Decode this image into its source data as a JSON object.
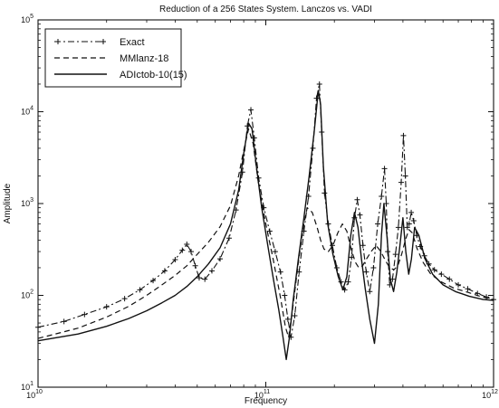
{
  "chart_data": {
    "type": "line",
    "title": "Reduction of a 256 States System. Lanczos vs. VADI",
    "xlabel": "Frequency",
    "ylabel": "Amplitude",
    "x_scale": "log",
    "y_scale": "log",
    "xlim": [
      10000000000.0,
      1000000000000.0
    ],
    "ylim": [
      10,
      100000
    ],
    "x_ticks": [
      {
        "value": 10000000000.0,
        "base": "10",
        "exp": "10"
      },
      {
        "value": 100000000000.0,
        "base": "10",
        "exp": "11"
      },
      {
        "value": 1000000000000.0,
        "base": "10",
        "exp": "12"
      }
    ],
    "y_ticks": [
      {
        "value": 10,
        "base": "10",
        "exp": "1"
      },
      {
        "value": 100,
        "base": "10",
        "exp": "2"
      },
      {
        "value": 1000,
        "base": "10",
        "exp": "3"
      },
      {
        "value": 10000,
        "base": "10",
        "exp": "4"
      },
      {
        "value": 100000,
        "base": "10",
        "exp": "5"
      }
    ],
    "grid": false,
    "legend_position": "top-left",
    "series": [
      {
        "name": "Exact",
        "style": "dash-dot with plus markers",
        "x": [
          10000000000.0,
          13000000000.0,
          16000000000.0,
          20000000000.0,
          24000000000.0,
          28000000000.0,
          32000000000.0,
          36000000000.0,
          40000000000.0,
          43000000000.0,
          45000000000.0,
          47000000000.0,
          49000000000.0,
          51000000000.0,
          54000000000.0,
          58000000000.0,
          63000000000.0,
          69000000000.0,
          74000000000.0,
          79000000000.0,
          83000000000.0,
          86000000000.0,
          89000000000.0,
          93000000000.0,
          98000000000.0,
          104000000000.0,
          110000000000.0,
          116000000000.0,
          121000000000.0,
          125000000000.0,
          129000000000.0,
          134000000000.0,
          140000000000.0,
          147000000000.0,
          154000000000.0,
          161000000000.0,
          167000000000.0,
          172000000000.0,
          176000000000.0,
          181000000000.0,
          188000000000.0,
          196000000000.0,
          205000000000.0,
          214000000000.0,
          222000000000.0,
          230000000000.0,
          238000000000.0,
          245000000000.0,
          252000000000.0,
          259000000000.0,
          267000000000.0,
          276000000000.0,
          286000000000.0,
          297000000000.0,
          310000000000.0,
          322000000000.0,
          332000000000.0,
          338000000000.0,
          343000000000.0,
          350000000000.0,
          360000000000.0,
          371000000000.0,
          382000000000.0,
          393000000000.0,
          402000000000.0,
          410000000000.0,
          418000000000.0,
          426000000000.0,
          435000000000.0,
          446000000000.0,
          460000000000.0,
          477000000000.0,
          497000000000.0,
          520000000000.0,
          550000000000.0,
          590000000000.0,
          640000000000.0,
          700000000000.0,
          770000000000.0,
          850000000000.0,
          930000000000.0,
          1000000000000.0
        ],
        "y": [
          45,
          52,
          62,
          75,
          92,
          115,
          145,
          185,
          245,
          310,
          360,
          300,
          210,
          155,
          150,
          185,
          250,
          420,
          850,
          2200,
          7000,
          10500,
          5200,
          1900,
          900,
          500,
          300,
          180,
          100,
          55,
          35,
          60,
          180,
          500,
          1200,
          4000,
          14000,
          20000,
          6000,
          1300,
          600,
          350,
          200,
          140,
          115,
          140,
          260,
          700,
          1100,
          750,
          350,
          180,
          110,
          200,
          600,
          1200,
          2400,
          1000,
          300,
          130,
          150,
          280,
          550,
          1700,
          5500,
          2000,
          550,
          600,
          800,
          650,
          450,
          340,
          270,
          220,
          190,
          170,
          150,
          130,
          118,
          105,
          96,
          90
        ]
      },
      {
        "name": "MMlanz-18",
        "style": "dashed",
        "x": [
          10000000000.0,
          15000000000.0,
          20000000000.0,
          25000000000.0,
          30000000000.0,
          35000000000.0,
          40000000000.0,
          45000000000.0,
          50000000000.0,
          56000000000.0,
          63000000000.0,
          70000000000.0,
          76000000000.0,
          80000000000.0,
          84000000000.0,
          88000000000.0,
          93000000000.0,
          100000000000.0,
          108000000000.0,
          116000000000.0,
          122000000000.0,
          126000000000.0,
          131000000000.0,
          138000000000.0,
          145000000000.0,
          152000000000.0,
          160000000000.0,
          168000000000.0,
          174000000000.0,
          180000000000.0,
          188000000000.0,
          197000000000.0,
          207000000000.0,
          217000000000.0,
          227000000000.0,
          237000000000.0,
          247000000000.0,
          256000000000.0,
          266000000000.0,
          277000000000.0,
          290000000000.0,
          305000000000.0,
          320000000000.0,
          335000000000.0,
          350000000000.0,
          365000000000.0,
          380000000000.0,
          395000000000.0,
          410000000000.0,
          425000000000.0,
          440000000000.0,
          460000000000.0,
          490000000000.0,
          530000000000.0,
          590000000000.0,
          670000000000.0,
          770000000000.0,
          880000000000.0,
          1000000000000.0
        ],
        "y": [
          34,
          44,
          58,
          76,
          100,
          130,
          165,
          210,
          280,
          380,
          560,
          950,
          2000,
          3800,
          6500,
          4500,
          1600,
          600,
          240,
          95,
          45,
          35,
          70,
          200,
          500,
          900,
          800,
          550,
          400,
          320,
          300,
          350,
          480,
          600,
          500,
          320,
          230,
          200,
          210,
          250,
          300,
          350,
          300,
          240,
          200,
          190,
          210,
          280,
          400,
          520,
          480,
          330,
          230,
          170,
          140,
          120,
          108,
          97,
          90
        ]
      },
      {
        "name": "ADIctob-10(15)",
        "style": "solid",
        "x": [
          10000000000.0,
          15000000000.0,
          20000000000.0,
          25000000000.0,
          30000000000.0,
          35000000000.0,
          40000000000.0,
          45000000000.0,
          50000000000.0,
          56000000000.0,
          63000000000.0,
          70000000000.0,
          76000000000.0,
          80000000000.0,
          84000000000.0,
          87000000000.0,
          91000000000.0,
          96000000000.0,
          102000000000.0,
          108000000000.0,
          114000000000.0,
          119000000000.0,
          123000000000.0,
          127000000000.0,
          132000000000.0,
          139000000000.0,
          147000000000.0,
          155000000000.0,
          163000000000.0,
          170000000000.0,
          174000000000.0,
          179000000000.0,
          187000000000.0,
          197000000000.0,
          208000000000.0,
          218000000000.0,
          227000000000.0,
          236000000000.0,
          245000000000.0,
          254000000000.0,
          263000000000.0,
          273000000000.0,
          286000000000.0,
          300000000000.0,
          312000000000.0,
          322000000000.0,
          330000000000.0,
          340000000000.0,
          352000000000.0,
          364000000000.0,
          376000000000.0,
          388000000000.0,
          400000000000.0,
          412000000000.0,
          424000000000.0,
          436000000000.0,
          450000000000.0,
          470000000000.0,
          500000000000.0,
          540000000000.0,
          600000000000.0,
          680000000000.0,
          780000000000.0,
          900000000000.0,
          1000000000000.0
        ],
        "y": [
          32,
          38,
          46,
          56,
          68,
          83,
          100,
          125,
          160,
          220,
          330,
          600,
          1400,
          3500,
          7500,
          6500,
          2500,
          900,
          350,
          150,
          70,
          35,
          20,
          35,
          90,
          250,
          700,
          2000,
          6000,
          17000,
          12000,
          2500,
          600,
          280,
          160,
          115,
          160,
          450,
          800,
          550,
          250,
          120,
          55,
          30,
          80,
          450,
          1000,
          450,
          150,
          110,
          180,
          350,
          700,
          300,
          170,
          250,
          550,
          450,
          250,
          170,
          130,
          110,
          98,
          90,
          88
        ]
      }
    ]
  },
  "colors": {
    "line": "#111111",
    "background": "#ffffff",
    "axes": "#111111"
  }
}
